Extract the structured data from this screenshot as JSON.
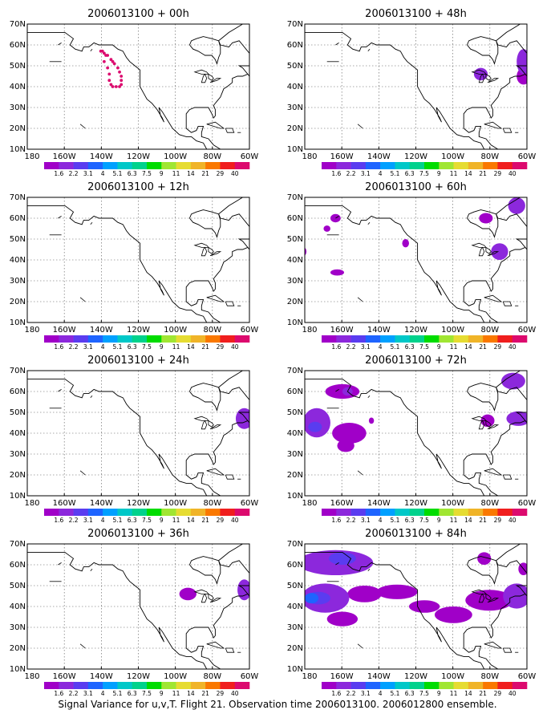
{
  "caption": "Signal Variance for u,v,T. Flight 21. Observation time 2006013100. 2006012800 ensemble.",
  "colorbar": {
    "labels": [
      "1.6",
      "2.2",
      "3.1",
      "4",
      "5.1",
      "6.3",
      "7.5",
      "9",
      "11",
      "14",
      "21",
      "29",
      "40"
    ],
    "colors": [
      "#a000c8",
      "#8c28dc",
      "#5a3cf0",
      "#1e64ff",
      "#00a0ff",
      "#00c8c8",
      "#00d28c",
      "#00dc00",
      "#a0e632",
      "#e6dc32",
      "#f0b428",
      "#fa7800",
      "#f01e1e",
      "#dc0a6e"
    ]
  },
  "chart_data": [
    {
      "type": "heatmap",
      "title": "2006013100 + 00h",
      "x_ticks": [
        "180",
        "160W",
        "140W",
        "120W",
        "100W",
        "80W",
        "60W"
      ],
      "y_ticks": [
        "10N",
        "20N",
        "30N",
        "40N",
        "50N",
        "60N",
        "70N"
      ],
      "xlim": [
        -190,
        -60
      ],
      "ylim": [
        10,
        70
      ],
      "grid": true,
      "flight_track": [
        [
          -146,
          57
        ],
        [
          -144,
          55
        ],
        [
          -145,
          52
        ],
        [
          -143,
          49
        ],
        [
          -142,
          46
        ],
        [
          -142,
          43
        ],
        [
          -141,
          41
        ],
        [
          -140,
          40
        ],
        [
          -138,
          40
        ],
        [
          -136,
          40
        ],
        [
          -135,
          41
        ],
        [
          -135,
          43
        ],
        [
          -135,
          45
        ],
        [
          -136,
          47
        ],
        [
          -137,
          49
        ],
        [
          -139,
          51
        ],
        [
          -140,
          52
        ],
        [
          -141,
          53
        ],
        [
          -143,
          55
        ],
        [
          -145,
          56
        ],
        [
          -147,
          57
        ]
      ],
      "regions": []
    },
    {
      "type": "heatmap",
      "title": "2006013100 + 12h",
      "x_ticks": [
        "180",
        "160W",
        "140W",
        "120W",
        "100W",
        "80W",
        "60W"
      ],
      "y_ticks": [
        "10N",
        "20N",
        "30N",
        "40N",
        "50N",
        "60N",
        "70N"
      ],
      "xlim": [
        -190,
        -60
      ],
      "ylim": [
        10,
        70
      ],
      "grid": true,
      "regions": []
    },
    {
      "type": "heatmap",
      "title": "2006013100 + 24h",
      "x_ticks": [
        "180",
        "160W",
        "140W",
        "120W",
        "100W",
        "80W",
        "60W"
      ],
      "y_ticks": [
        "10N",
        "20N",
        "30N",
        "40N",
        "50N",
        "60N",
        "70N"
      ],
      "xlim": [
        -190,
        -60
      ],
      "ylim": [
        10,
        70
      ],
      "grid": true,
      "regions": [
        {
          "lon": -63,
          "lat": 47,
          "rlon": 5,
          "rlat": 5,
          "level": 1
        }
      ]
    },
    {
      "type": "heatmap",
      "title": "2006013100 + 36h",
      "x_ticks": [
        "180",
        "160W",
        "140W",
        "120W",
        "100W",
        "80W",
        "60W"
      ],
      "y_ticks": [
        "10N",
        "20N",
        "30N",
        "40N",
        "50N",
        "60N",
        "70N"
      ],
      "xlim": [
        -190,
        -60
      ],
      "ylim": [
        10,
        70
      ],
      "grid": true,
      "regions": [
        {
          "lon": -96,
          "lat": 46,
          "rlon": 5,
          "rlat": 3,
          "level": 0
        },
        {
          "lon": -63,
          "lat": 48,
          "rlon": 4,
          "rlat": 5,
          "level": 1
        }
      ]
    },
    {
      "type": "heatmap",
      "title": "2006013100 + 48h",
      "x_ticks": [
        "180",
        "160W",
        "140W",
        "120W",
        "100W",
        "80W",
        "60W"
      ],
      "y_ticks": [
        "10N",
        "20N",
        "30N",
        "40N",
        "50N",
        "60N",
        "70N"
      ],
      "xlim": [
        -190,
        -60
      ],
      "ylim": [
        10,
        70
      ],
      "grid": true,
      "regions": [
        {
          "lon": -87,
          "lat": 46,
          "rlon": 4,
          "rlat": 3,
          "level": 1
        },
        {
          "lon": -62,
          "lat": 52,
          "rlon": 4,
          "rlat": 6,
          "level": 1
        },
        {
          "lon": -62,
          "lat": 45,
          "rlon": 4,
          "rlat": 4,
          "level": 0
        }
      ]
    },
    {
      "type": "heatmap",
      "title": "2006013100 + 60h",
      "x_ticks": [
        "180",
        "160W",
        "140W",
        "120W",
        "100W",
        "80W",
        "60W"
      ],
      "y_ticks": [
        "10N",
        "20N",
        "30N",
        "40N",
        "50N",
        "60N",
        "70N"
      ],
      "xlim": [
        -190,
        -60
      ],
      "ylim": [
        10,
        70
      ],
      "grid": true,
      "regions": [
        {
          "lon": -172,
          "lat": 60,
          "rlon": 3,
          "rlat": 2,
          "level": 0
        },
        {
          "lon": -177,
          "lat": 55,
          "rlon": 2,
          "rlat": 1.5,
          "level": 0
        },
        {
          "lon": -193,
          "lat": 44,
          "rlon": 4,
          "rlat": 3,
          "level": 0
        },
        {
          "lon": -171,
          "lat": 34,
          "rlon": 4,
          "rlat": 1.5,
          "level": 0
        },
        {
          "lon": -131,
          "lat": 48,
          "rlon": 2,
          "rlat": 2,
          "level": 0
        },
        {
          "lon": -84,
          "lat": 60,
          "rlon": 4,
          "rlat": 2.5,
          "level": 0
        },
        {
          "lon": -66,
          "lat": 66,
          "rlon": 5,
          "rlat": 4,
          "level": 1
        },
        {
          "lon": -76,
          "lat": 44,
          "rlon": 5,
          "rlat": 4,
          "level": 1
        }
      ]
    },
    {
      "type": "heatmap",
      "title": "2006013100 + 72h",
      "x_ticks": [
        "180",
        "160W",
        "140W",
        "120W",
        "100W",
        "80W",
        "60W"
      ],
      "y_ticks": [
        "10N",
        "20N",
        "30N",
        "40N",
        "50N",
        "60N",
        "70N"
      ],
      "xlim": [
        -190,
        -60
      ],
      "ylim": [
        10,
        70
      ],
      "grid": true,
      "regions": [
        {
          "lon": -183,
          "lat": 45,
          "rlon": 8,
          "rlat": 7,
          "level": 1
        },
        {
          "lon": -184,
          "lat": 43,
          "rlon": 4,
          "rlat": 2.5,
          "level": 2
        },
        {
          "lon": -168,
          "lat": 60,
          "rlon": 10,
          "rlat": 3.5,
          "level": 0
        },
        {
          "lon": -165,
          "lat": 60,
          "rlon": 3,
          "rlat": 2,
          "level": 1
        },
        {
          "lon": -164,
          "lat": 40,
          "rlon": 10,
          "rlat": 5,
          "level": 0
        },
        {
          "lon": -166,
          "lat": 34,
          "rlon": 5,
          "rlat": 3,
          "level": 0
        },
        {
          "lon": -151,
          "lat": 46,
          "rlon": 1.5,
          "rlat": 1.5,
          "level": 0
        },
        {
          "lon": -83,
          "lat": 46,
          "rlon": 4,
          "rlat": 3,
          "level": 0
        },
        {
          "lon": -65,
          "lat": 47,
          "rlon": 7,
          "rlat": 3.5,
          "level": 1
        },
        {
          "lon": -68,
          "lat": 65,
          "rlon": 7,
          "rlat": 4,
          "level": 1
        }
      ]
    },
    {
      "type": "heatmap",
      "title": "2006013100 + 84h",
      "x_ticks": [
        "180",
        "160W",
        "140W",
        "120W",
        "100W",
        "80W",
        "60W"
      ],
      "y_ticks": [
        "10N",
        "20N",
        "30N",
        "40N",
        "50N",
        "60N",
        "70N"
      ],
      "xlim": [
        -190,
        -60
      ],
      "ylim": [
        10,
        70
      ],
      "grid": true,
      "regions": [
        {
          "lon": -172,
          "lat": 61,
          "rlon": 22,
          "rlat": 6,
          "level": 1
        },
        {
          "lon": -168,
          "lat": 63,
          "rlon": 8,
          "rlat": 3,
          "level": 2
        },
        {
          "lon": -178,
          "lat": 44,
          "rlon": 14,
          "rlat": 7,
          "level": 1
        },
        {
          "lon": -182,
          "lat": 44,
          "rlon": 7,
          "rlat": 3,
          "level": 2
        },
        {
          "lon": -186,
          "lat": 44,
          "rlon": 4,
          "rlat": 2.5,
          "level": 3
        },
        {
          "lon": -168,
          "lat": 34,
          "rlon": 9,
          "rlat": 3.5,
          "level": 0
        },
        {
          "lon": -155,
          "lat": 46,
          "rlon": 10,
          "rlat": 4,
          "level": 0
        },
        {
          "lon": -136,
          "lat": 47,
          "rlon": 12,
          "rlat": 3.5,
          "level": 0
        },
        {
          "lon": -120,
          "lat": 40,
          "rlon": 9,
          "rlat": 3,
          "level": 0
        },
        {
          "lon": -103,
          "lat": 36,
          "rlon": 11,
          "rlat": 4,
          "level": 0
        },
        {
          "lon": -82,
          "lat": 43,
          "rlon": 14,
          "rlat": 5,
          "level": 0
        },
        {
          "lon": -66,
          "lat": 45,
          "rlon": 8,
          "rlat": 6,
          "level": 1
        },
        {
          "lon": -85,
          "lat": 63,
          "rlon": 4,
          "rlat": 3,
          "level": 0
        },
        {
          "lon": -62,
          "lat": 58,
          "rlon": 3,
          "rlat": 3,
          "level": 0
        }
      ]
    }
  ]
}
